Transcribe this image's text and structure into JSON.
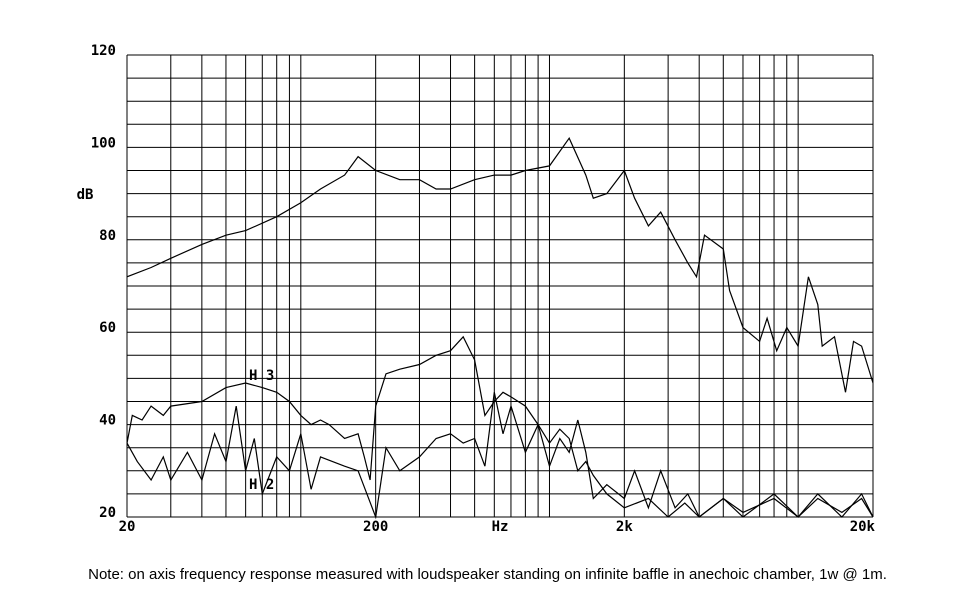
{
  "chart_data": {
    "type": "line",
    "log_x": true,
    "x_label": "Hz",
    "y_label": "dB",
    "note": "Note: on axis frequency response measured with loudspeaker standing on infinite baffle in anechoic chamber, 1w @ 1m.",
    "xlim": [
      20,
      20000
    ],
    "ylim": [
      20,
      120
    ],
    "xticks": [
      20,
      200,
      {
        "value": 2000,
        "label": "2k"
      },
      {
        "value": 20000,
        "label": "20k"
      }
    ],
    "yticks": [
      20,
      40,
      60,
      80,
      100,
      120
    ],
    "xgrid": [
      20,
      30,
      40,
      50,
      60,
      70,
      80,
      90,
      100,
      200,
      300,
      400,
      500,
      600,
      700,
      800,
      900,
      1000,
      2000,
      3000,
      4000,
      5000,
      6000,
      7000,
      8000,
      9000,
      10000,
      20000
    ],
    "ygrid": [
      20,
      25,
      30,
      35,
      40,
      45,
      50,
      55,
      60,
      65,
      70,
      75,
      80,
      85,
      90,
      95,
      100,
      105,
      110,
      115,
      120
    ],
    "series": [
      {
        "color": "#000000",
        "x": [
          20,
          25,
          30,
          40,
          50,
          60,
          80,
          100,
          120,
          150,
          170,
          200,
          250,
          300,
          350,
          400,
          500,
          600,
          700,
          800,
          1000,
          1200,
          1400,
          1500,
          1700,
          2000,
          2200,
          2500,
          2800,
          3200,
          3600,
          3900,
          4200,
          5000,
          5300,
          6000,
          7000,
          7500,
          8200,
          9000,
          10000,
          11000,
          12000,
          12500,
          14000,
          15500,
          16700,
          18000,
          20000
        ],
        "values": [
          72,
          74,
          76,
          79,
          81,
          82,
          85,
          88,
          91,
          94,
          98,
          95,
          93,
          93,
          91,
          91,
          93,
          94,
          94,
          95,
          96,
          102,
          94,
          89,
          90,
          95,
          89,
          83,
          86,
          80,
          75,
          72,
          81,
          78,
          69,
          61,
          58,
          63,
          56,
          61,
          57,
          72,
          66,
          57,
          59,
          47,
          58,
          57,
          49
        ]
      },
      {
        "name": "H 3",
        "color": "#000000",
        "x": [
          20,
          21,
          23,
          25,
          28,
          30,
          40,
          50,
          60,
          70,
          80,
          90,
          100,
          110,
          120,
          130,
          150,
          170,
          180,
          190,
          200,
          220,
          250,
          300,
          350,
          400,
          450,
          500,
          550,
          600,
          650,
          700,
          800,
          900,
          1000,
          1100,
          1200,
          1300,
          1400,
          1500,
          1700,
          2000,
          2500,
          3000,
          3500,
          4000,
          5000,
          6000,
          8000,
          10000,
          12000,
          15000,
          18000,
          20000
        ],
        "values": [
          36,
          42,
          41,
          44,
          42,
          44,
          45,
          48,
          49,
          48,
          47,
          45,
          42,
          40,
          41,
          40,
          37,
          38,
          33,
          28,
          44,
          51,
          52,
          53,
          55,
          56,
          59,
          54,
          42,
          45,
          47,
          46,
          44,
          40,
          36,
          39,
          37,
          30,
          32,
          29,
          25,
          22,
          24,
          20,
          23,
          20,
          24,
          21,
          24,
          20,
          24,
          21,
          24,
          20
        ]
      },
      {
        "name": "H 2",
        "color": "#000000",
        "x": [
          20,
          22,
          25,
          28,
          30,
          35,
          40,
          45,
          50,
          55,
          60,
          65,
          70,
          80,
          90,
          100,
          110,
          120,
          150,
          170,
          200,
          220,
          250,
          300,
          350,
          400,
          450,
          500,
          550,
          600,
          650,
          700,
          800,
          900,
          1000,
          1100,
          1200,
          1300,
          1400,
          1500,
          1700,
          2000,
          2200,
          2500,
          2800,
          3200,
          3600,
          4000,
          5000,
          6000,
          8000,
          10000,
          12000,
          15000,
          18000,
          20000
        ],
        "values": [
          36,
          32,
          28,
          33,
          28,
          34,
          28,
          38,
          32,
          44,
          30,
          37,
          25,
          33,
          30,
          38,
          26,
          33,
          31,
          30,
          20,
          35,
          30,
          33,
          37,
          38,
          36,
          37,
          31,
          47,
          38,
          44,
          34,
          40,
          31,
          37,
          34,
          41,
          34,
          24,
          27,
          24,
          30,
          22,
          30,
          22,
          25,
          20,
          24,
          20,
          25,
          20,
          25,
          20,
          25,
          20
        ]
      }
    ]
  }
}
